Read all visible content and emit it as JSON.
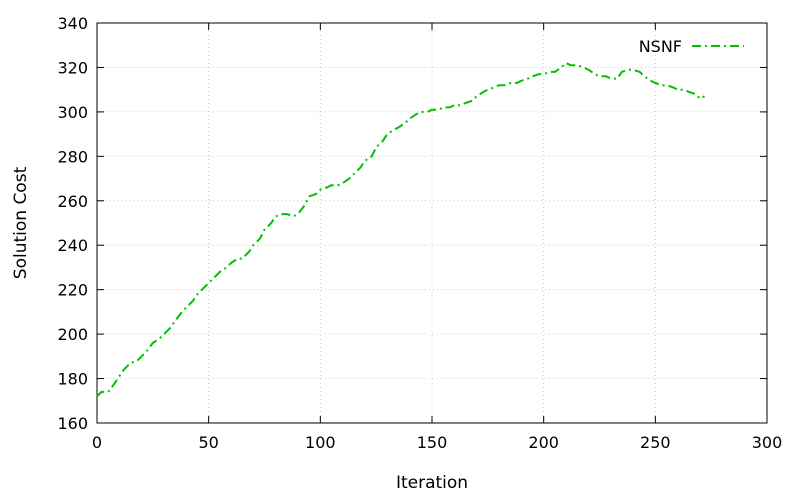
{
  "chart_data": {
    "type": "line",
    "title": "",
    "xlabel": "Iteration",
    "ylabel": "Solution Cost",
    "xlim": [
      0,
      300
    ],
    "ylim": [
      160,
      340
    ],
    "xticks": [
      "0",
      "50",
      "100",
      "150",
      "200",
      "250",
      "300"
    ],
    "yticks": [
      "160",
      "180",
      "200",
      "220",
      "240",
      "260",
      "280",
      "300",
      "320",
      "340"
    ],
    "grid": true,
    "legend_position": "top-right",
    "series": [
      {
        "name": "NSNF",
        "color": "#00c000",
        "line_style": "dash-dot",
        "x": [
          0,
          2,
          5,
          8,
          10,
          12,
          15,
          18,
          20,
          22,
          25,
          28,
          30,
          33,
          35,
          38,
          40,
          43,
          45,
          48,
          50,
          53,
          55,
          58,
          60,
          63,
          65,
          68,
          70,
          73,
          75,
          78,
          80,
          83,
          85,
          88,
          90,
          93,
          95,
          98,
          100,
          103,
          105,
          108,
          110,
          113,
          115,
          118,
          120,
          123,
          125,
          128,
          130,
          133,
          135,
          138,
          140,
          143,
          145,
          148,
          150,
          153,
          155,
          158,
          160,
          163,
          165,
          168,
          170,
          173,
          175,
          178,
          180,
          183,
          185,
          188,
          190,
          193,
          195,
          198,
          200,
          203,
          205,
          208,
          210,
          212,
          215,
          218,
          220,
          223,
          225,
          228,
          230,
          233,
          235,
          238,
          240,
          243,
          245,
          248,
          250,
          253,
          255,
          258,
          260,
          263,
          265,
          268,
          270,
          272
        ],
        "y": [
          172,
          174,
          174,
          178,
          181,
          184,
          187,
          188,
          190,
          192,
          196,
          198,
          200,
          203,
          206,
          210,
          212,
          215,
          218,
          221,
          223,
          226,
          228,
          230,
          232,
          234,
          234,
          237,
          240,
          243,
          247,
          250,
          253,
          254,
          254,
          253,
          254,
          258,
          262,
          263,
          265,
          266,
          267,
          267,
          268,
          270,
          272,
          275,
          278,
          280,
          284,
          287,
          290,
          292,
          293,
          295,
          297,
          299,
          300,
          300,
          301,
          301,
          302,
          302,
          303,
          303,
          304,
          305,
          307,
          309,
          310,
          311,
          312,
          312,
          313,
          313,
          314,
          315,
          316,
          317,
          317,
          318,
          318,
          320,
          322,
          321,
          321,
          320,
          319,
          317,
          316,
          316,
          315,
          315,
          318,
          319,
          319,
          318,
          316,
          314,
          313,
          312,
          312,
          311,
          310,
          310,
          309,
          308,
          306,
          307
        ]
      }
    ]
  }
}
